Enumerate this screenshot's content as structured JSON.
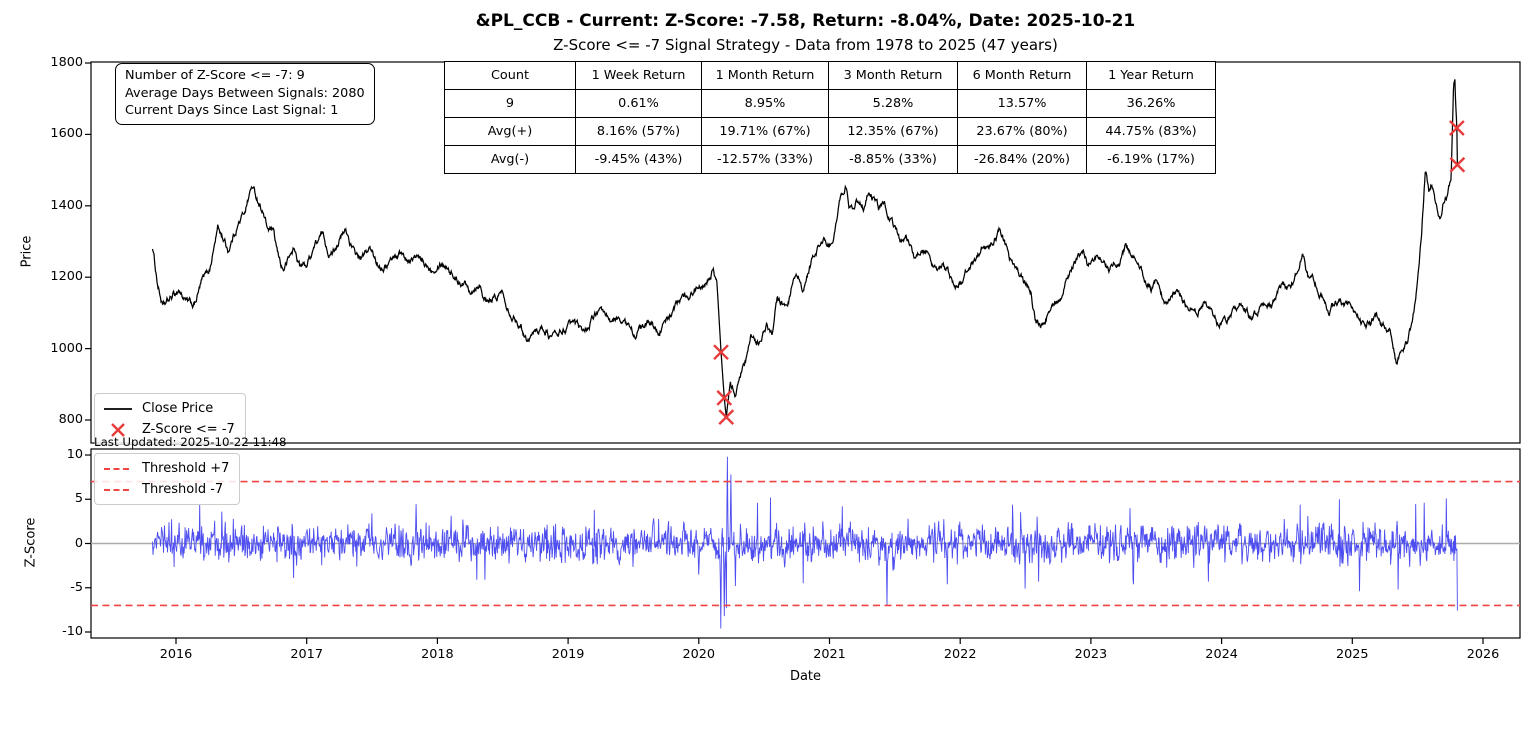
{
  "header": {
    "title": "&PL_CCB - Current: Z-Score: -7.58, Return: -8.04%, Date: 2025-10-21",
    "subtitle": "Z-Score <= -7 Signal Strategy - Data from 1978 to 2025 (47 years)"
  },
  "stats_box": {
    "lines": [
      "Number of Z-Score <= -7: 9",
      "Average Days Between Signals: 2080",
      "Current Days Since Last Signal: 1"
    ]
  },
  "summary_table": {
    "headers": [
      "Count",
      "1 Week Return",
      "1 Month Return",
      "3 Month Return",
      "6 Month Return",
      "1 Year Return"
    ],
    "rows": [
      [
        "9",
        "0.61%",
        "8.95%",
        "5.28%",
        "13.57%",
        "36.26%"
      ],
      [
        "Avg(+)",
        "8.16% (57%)",
        "19.71% (67%)",
        "12.35% (67%)",
        "23.67% (80%)",
        "44.75% (83%)"
      ],
      [
        "Avg(-)",
        "-9.45% (43%)",
        "-12.57% (33%)",
        "-8.85% (33%)",
        "-26.84% (20%)",
        "-6.19% (17%)"
      ]
    ]
  },
  "price_panel": {
    "ylabel": "Price",
    "yticks": [
      800,
      1000,
      1200,
      1400,
      1600,
      1800
    ],
    "legend": [
      {
        "label": "Close Price",
        "type": "line"
      },
      {
        "label": "Z-Score <= -7",
        "type": "x-marker"
      }
    ],
    "last_updated": "Last Updated: 2025-10-22 11:48"
  },
  "zscore_panel": {
    "ylabel": "Z-Score",
    "yticks": [
      -10,
      -5,
      0,
      5,
      10
    ],
    "legend": [
      {
        "label": "Threshold +7"
      },
      {
        "label": "Threshold -7"
      }
    ]
  },
  "xaxis": {
    "label": "Date",
    "ticks": [
      2016,
      2017,
      2018,
      2019,
      2020,
      2021,
      2022,
      2023,
      2024,
      2025,
      2026
    ]
  },
  "colors": {
    "price_line": "#000000",
    "zscore_line": "#4d4df0",
    "threshold": "#f04343",
    "marker": "#e83b3b",
    "zero_line": "#ababab",
    "spine": "#000000",
    "legend_border": "#cccccc"
  },
  "chart_data": [
    {
      "type": "line",
      "title": "Close Price with Z-Score <= -7 signal markers",
      "xlabel": "Date",
      "ylabel": "Price",
      "xlim": [
        2015.35,
        2026.28
      ],
      "ylim": [
        750,
        1800
      ],
      "x_range_of_data": [
        2015.82,
        2025.804
      ],
      "anchors": [
        [
          2015.82,
          1285
        ],
        [
          2015.86,
          1180
        ],
        [
          2015.9,
          1115
        ],
        [
          2015.96,
          1140
        ],
        [
          2016.02,
          1165
        ],
        [
          2016.08,
          1130
        ],
        [
          2016.14,
          1120
        ],
        [
          2016.2,
          1190
        ],
        [
          2016.26,
          1225
        ],
        [
          2016.32,
          1340
        ],
        [
          2016.36,
          1310
        ],
        [
          2016.4,
          1275
        ],
        [
          2016.46,
          1335
        ],
        [
          2016.52,
          1380
        ],
        [
          2016.58,
          1455
        ],
        [
          2016.62,
          1420
        ],
        [
          2016.66,
          1390
        ],
        [
          2016.7,
          1335
        ],
        [
          2016.74,
          1330
        ],
        [
          2016.78,
          1260
        ],
        [
          2016.82,
          1220
        ],
        [
          2016.86,
          1250
        ],
        [
          2016.9,
          1280
        ],
        [
          2016.95,
          1230
        ],
        [
          2017.0,
          1235
        ],
        [
          2017.06,
          1290
        ],
        [
          2017.12,
          1320
        ],
        [
          2017.18,
          1260
        ],
        [
          2017.24,
          1300
        ],
        [
          2017.3,
          1330
        ],
        [
          2017.36,
          1270
        ],
        [
          2017.42,
          1250
        ],
        [
          2017.48,
          1280
        ],
        [
          2017.54,
          1240
        ],
        [
          2017.6,
          1230
        ],
        [
          2017.66,
          1255
        ],
        [
          2017.72,
          1270
        ],
        [
          2017.78,
          1245
        ],
        [
          2017.84,
          1255
        ],
        [
          2017.9,
          1235
        ],
        [
          2017.96,
          1225
        ],
        [
          2018.02,
          1245
        ],
        [
          2018.08,
          1230
        ],
        [
          2018.14,
          1195
        ],
        [
          2018.2,
          1185
        ],
        [
          2018.26,
          1165
        ],
        [
          2018.32,
          1185
        ],
        [
          2018.38,
          1125
        ],
        [
          2018.44,
          1140
        ],
        [
          2018.5,
          1160
        ],
        [
          2018.56,
          1100
        ],
        [
          2018.62,
          1075
        ],
        [
          2018.68,
          1030
        ],
        [
          2018.74,
          1045
        ],
        [
          2018.8,
          1060
        ],
        [
          2018.86,
          1035
        ],
        [
          2018.92,
          1040
        ],
        [
          2018.98,
          1055
        ],
        [
          2019.04,
          1070
        ],
        [
          2019.1,
          1050
        ],
        [
          2019.16,
          1065
        ],
        [
          2019.22,
          1105
        ],
        [
          2019.28,
          1090
        ],
        [
          2019.34,
          1075
        ],
        [
          2019.4,
          1085
        ],
        [
          2019.46,
          1060
        ],
        [
          2019.52,
          1040
        ],
        [
          2019.58,
          1065
        ],
        [
          2019.64,
          1070
        ],
        [
          2019.7,
          1050
        ],
        [
          2019.76,
          1080
        ],
        [
          2019.82,
          1120
        ],
        [
          2019.88,
          1140
        ],
        [
          2019.94,
          1155
        ],
        [
          2020.0,
          1175
        ],
        [
          2020.06,
          1195
        ],
        [
          2020.11,
          1222
        ],
        [
          2020.14,
          1180
        ],
        [
          2020.17,
          990
        ],
        [
          2020.195,
          862
        ],
        [
          2020.21,
          808
        ],
        [
          2020.24,
          905
        ],
        [
          2020.28,
          875
        ],
        [
          2020.32,
          930
        ],
        [
          2020.36,
          960
        ],
        [
          2020.4,
          1035
        ],
        [
          2020.44,
          1010
        ],
        [
          2020.48,
          1025
        ],
        [
          2020.52,
          1060
        ],
        [
          2020.56,
          1045
        ],
        [
          2020.6,
          1140
        ],
        [
          2020.64,
          1125
        ],
        [
          2020.68,
          1110
        ],
        [
          2020.72,
          1180
        ],
        [
          2020.76,
          1190
        ],
        [
          2020.8,
          1155
        ],
        [
          2020.84,
          1215
        ],
        [
          2020.88,
          1260
        ],
        [
          2020.92,
          1285
        ],
        [
          2020.96,
          1310
        ],
        [
          2021.0,
          1280
        ],
        [
          2021.04,
          1330
        ],
        [
          2021.08,
          1415
        ],
        [
          2021.12,
          1460
        ],
        [
          2021.15,
          1400
        ],
        [
          2021.18,
          1385
        ],
        [
          2021.22,
          1420
        ],
        [
          2021.26,
          1400
        ],
        [
          2021.3,
          1440
        ],
        [
          2021.34,
          1415
        ],
        [
          2021.38,
          1390
        ],
        [
          2021.42,
          1415
        ],
        [
          2021.46,
          1370
        ],
        [
          2021.5,
          1340
        ],
        [
          2021.54,
          1300
        ],
        [
          2021.58,
          1320
        ],
        [
          2021.62,
          1285
        ],
        [
          2021.66,
          1250
        ],
        [
          2021.7,
          1280
        ],
        [
          2021.74,
          1270
        ],
        [
          2021.78,
          1230
        ],
        [
          2021.82,
          1205
        ],
        [
          2021.86,
          1235
        ],
        [
          2021.9,
          1220
        ],
        [
          2021.94,
          1185
        ],
        [
          2021.98,
          1165
        ],
        [
          2022.02,
          1190
        ],
        [
          2022.06,
          1230
        ],
        [
          2022.1,
          1245
        ],
        [
          2022.14,
          1270
        ],
        [
          2022.18,
          1290
        ],
        [
          2022.22,
          1270
        ],
        [
          2022.26,
          1310
        ],
        [
          2022.3,
          1330
        ],
        [
          2022.34,
          1295
        ],
        [
          2022.38,
          1250
        ],
        [
          2022.42,
          1225
        ],
        [
          2022.46,
          1205
        ],
        [
          2022.5,
          1180
        ],
        [
          2022.54,
          1155
        ],
        [
          2022.58,
          1075
        ],
        [
          2022.62,
          1060
        ],
        [
          2022.66,
          1090
        ],
        [
          2022.7,
          1105
        ],
        [
          2022.74,
          1130
        ],
        [
          2022.78,
          1155
        ],
        [
          2022.82,
          1200
        ],
        [
          2022.86,
          1225
        ],
        [
          2022.9,
          1250
        ],
        [
          2022.94,
          1260
        ],
        [
          2022.98,
          1230
        ],
        [
          2023.02,
          1245
        ],
        [
          2023.06,
          1262
        ],
        [
          2023.1,
          1240
        ],
        [
          2023.14,
          1225
        ],
        [
          2023.18,
          1250
        ],
        [
          2023.22,
          1235
        ],
        [
          2023.26,
          1285
        ],
        [
          2023.3,
          1270
        ],
        [
          2023.34,
          1245
        ],
        [
          2023.38,
          1225
        ],
        [
          2023.42,
          1190
        ],
        [
          2023.46,
          1165
        ],
        [
          2023.5,
          1180
        ],
        [
          2023.54,
          1150
        ],
        [
          2023.58,
          1125
        ],
        [
          2023.62,
          1145
        ],
        [
          2023.66,
          1160
        ],
        [
          2023.7,
          1130
        ],
        [
          2023.74,
          1105
        ],
        [
          2023.78,
          1120
        ],
        [
          2023.82,
          1100
        ],
        [
          2023.86,
          1135
        ],
        [
          2023.9,
          1120
        ],
        [
          2023.94,
          1085
        ],
        [
          2023.98,
          1055
        ],
        [
          2024.02,
          1075
        ],
        [
          2024.06,
          1085
        ],
        [
          2024.1,
          1105
        ],
        [
          2024.14,
          1130
        ],
        [
          2024.18,
          1115
        ],
        [
          2024.22,
          1085
        ],
        [
          2024.26,
          1095
        ],
        [
          2024.3,
          1110
        ],
        [
          2024.34,
          1135
        ],
        [
          2024.38,
          1120
        ],
        [
          2024.42,
          1150
        ],
        [
          2024.46,
          1180
        ],
        [
          2024.5,
          1165
        ],
        [
          2024.54,
          1185
        ],
        [
          2024.58,
          1230
        ],
        [
          2024.62,
          1265
        ],
        [
          2024.66,
          1205
        ],
        [
          2024.7,
          1195
        ],
        [
          2024.74,
          1160
        ],
        [
          2024.78,
          1140
        ],
        [
          2024.82,
          1105
        ],
        [
          2024.86,
          1120
        ],
        [
          2024.9,
          1135
        ],
        [
          2024.94,
          1115
        ],
        [
          2024.98,
          1130
        ],
        [
          2025.02,
          1095
        ],
        [
          2025.06,
          1080
        ],
        [
          2025.1,
          1060
        ],
        [
          2025.14,
          1075
        ],
        [
          2025.18,
          1090
        ],
        [
          2025.22,
          1065
        ],
        [
          2025.26,
          1050
        ],
        [
          2025.3,
          1040
        ],
        [
          2025.34,
          955
        ],
        [
          2025.38,
          985
        ],
        [
          2025.42,
          1015
        ],
        [
          2025.46,
          1075
        ],
        [
          2025.5,
          1180
        ],
        [
          2025.53,
          1320
        ],
        [
          2025.56,
          1510
        ],
        [
          2025.585,
          1440
        ],
        [
          2025.61,
          1465
        ],
        [
          2025.64,
          1395
        ],
        [
          2025.67,
          1365
        ],
        [
          2025.7,
          1420
        ],
        [
          2025.73,
          1435
        ],
        [
          2025.755,
          1470
        ],
        [
          2025.775,
          1740
        ],
        [
          2025.785,
          1755
        ],
        [
          2025.79,
          1690
        ],
        [
          2025.795,
          1660
        ],
        [
          2025.8,
          1618
        ],
        [
          2025.804,
          1515
        ]
      ],
      "signal_markers": {
        "label": "Z-Score <= -7",
        "points": [
          [
            2020.17,
            990
          ],
          [
            2020.195,
            862
          ],
          [
            2020.21,
            808
          ],
          [
            2025.8,
            1618
          ],
          [
            2025.804,
            1515
          ]
        ]
      }
    },
    {
      "type": "line",
      "title": "Z-Score",
      "ylabel": "Z-Score",
      "ylim": [
        -10,
        10
      ],
      "thresholds": [
        7,
        -7
      ],
      "noise_sigma": 1.2,
      "spikes": [
        [
          2016.35,
          3.6
        ],
        [
          2016.9,
          -3.9
        ],
        [
          2017.5,
          3.4
        ],
        [
          2018.3,
          -4.1
        ],
        [
          2019.2,
          3.8
        ],
        [
          2020.17,
          -9.6
        ],
        [
          2020.195,
          -8.2
        ],
        [
          2020.21,
          -7.3
        ],
        [
          2020.218,
          9.8
        ],
        [
          2020.245,
          7.8
        ],
        [
          2020.28,
          -4.8
        ],
        [
          2020.45,
          4.6
        ],
        [
          2020.55,
          5.2
        ],
        [
          2020.8,
          -4.5
        ],
        [
          2021.1,
          4.2
        ],
        [
          2021.44,
          -6.95
        ],
        [
          2021.9,
          -4.6
        ],
        [
          2022.4,
          4.4
        ],
        [
          2022.6,
          -4.3
        ],
        [
          2023.3,
          4.0
        ],
        [
          2023.9,
          -4.3
        ],
        [
          2024.6,
          4.4
        ],
        [
          2024.9,
          5.0
        ],
        [
          2025.35,
          -5.2
        ],
        [
          2025.55,
          4.6
        ],
        [
          2025.72,
          5.1
        ]
      ],
      "final_point": [
        2025.79,
        -7.58
      ]
    }
  ]
}
